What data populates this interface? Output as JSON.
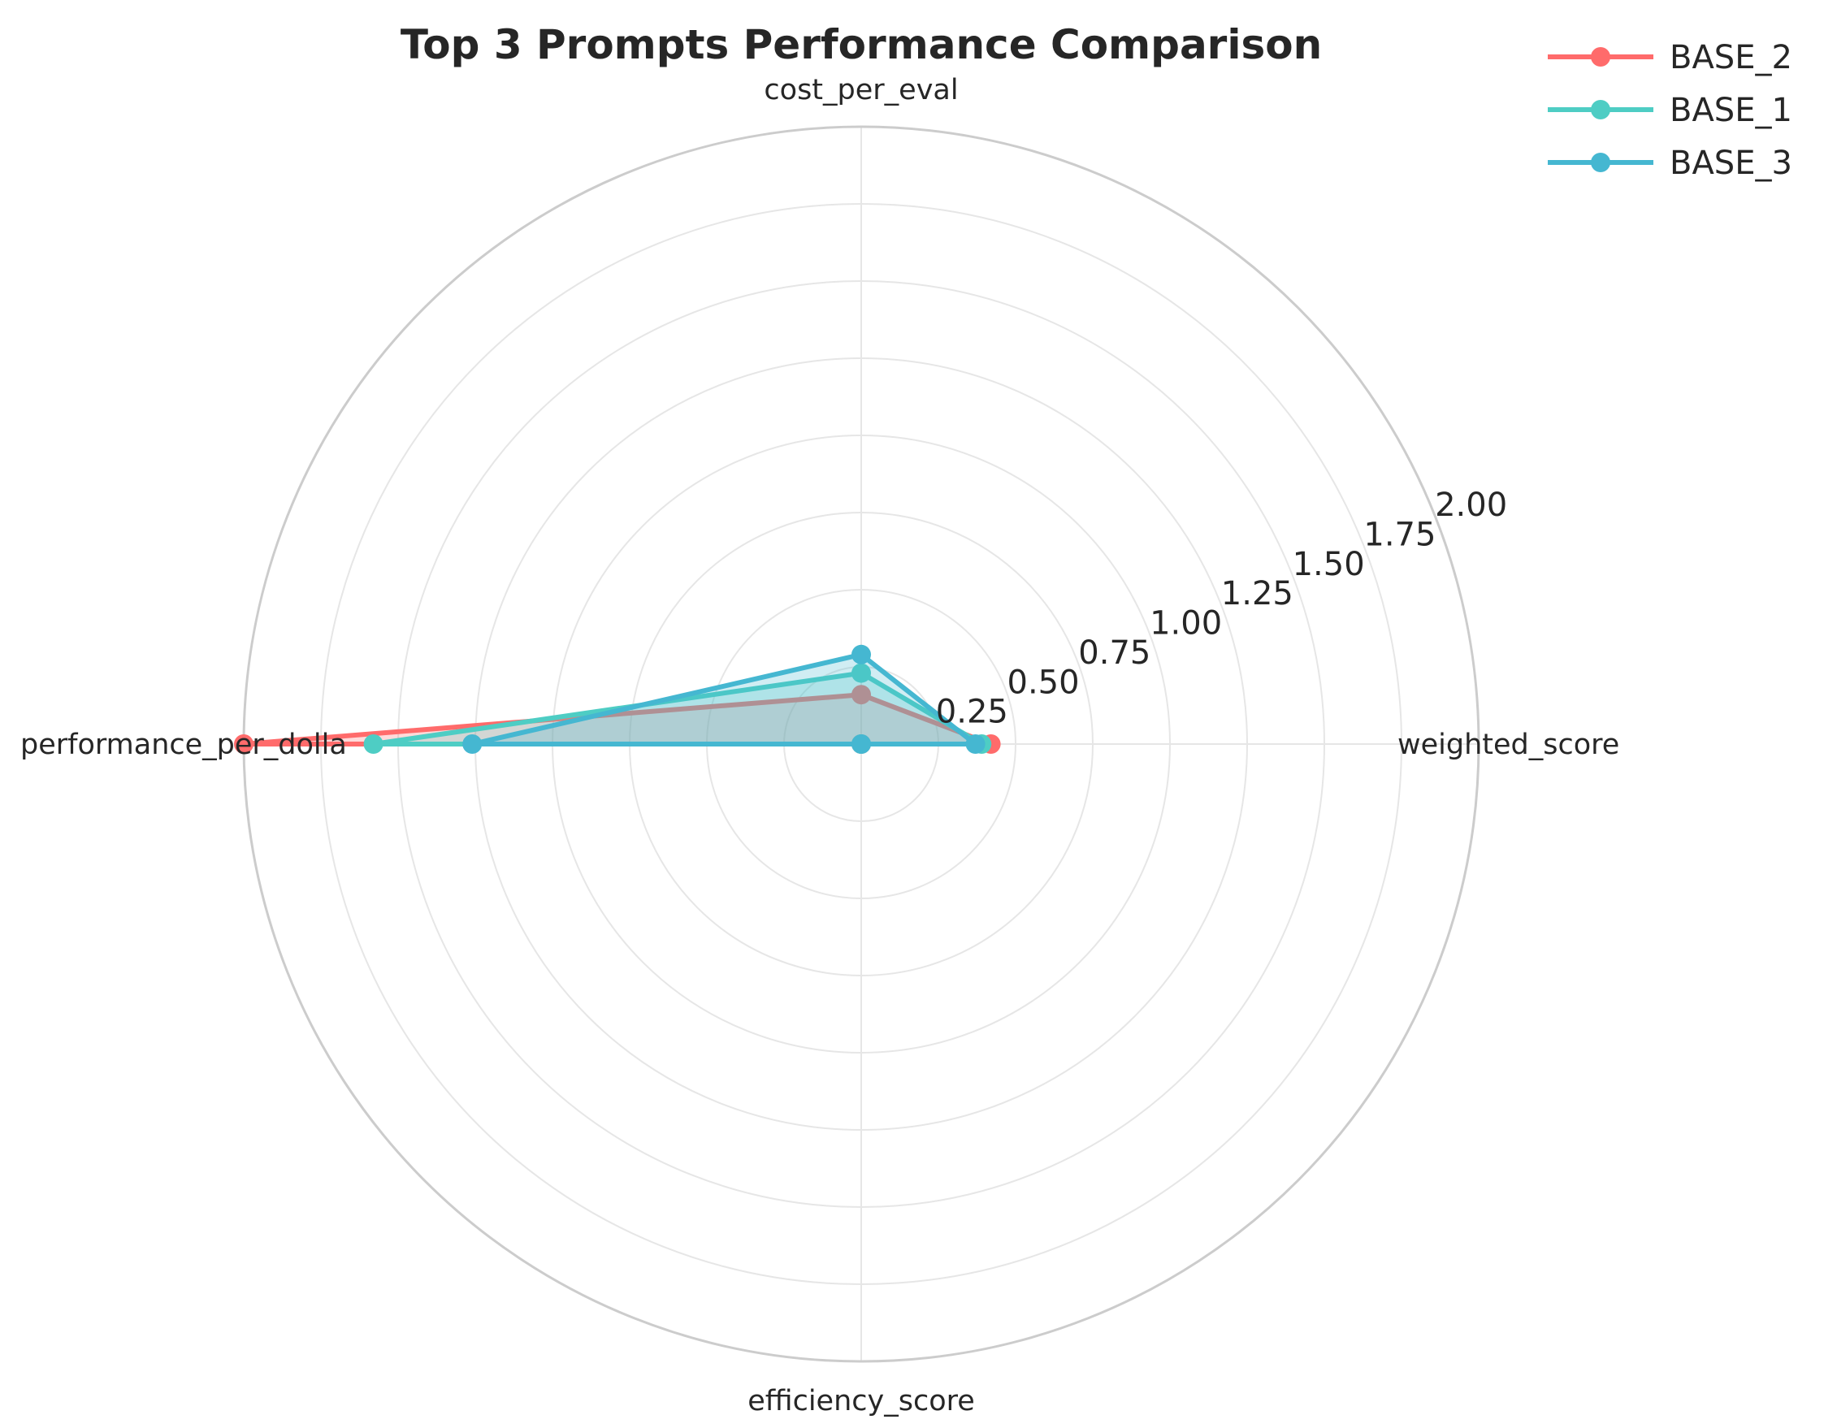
{
  "chart_data": {
    "type": "radar",
    "title": "Top 3 Prompts Performance Comparison",
    "axes": [
      "weighted_score",
      "cost_per_eval",
      "performance_per_dollar",
      "efficiency_score"
    ],
    "axis_labels_visible": [
      "weighted_score",
      "cost_per_eval",
      "performance_per_dolla",
      "efficiency_score"
    ],
    "rlim": [
      0,
      2.0
    ],
    "r_ticks": [
      0.25,
      0.5,
      0.75,
      1.0,
      1.25,
      1.5,
      1.75,
      2.0
    ],
    "r_tick_labels": [
      "0.25",
      "0.50",
      "0.75",
      "1.00",
      "1.25",
      "1.50",
      "1.75",
      "2.00"
    ],
    "grid": true,
    "legend_position": "top-right",
    "series": [
      {
        "name": "BASE_2",
        "color": "#FF6B6B",
        "values": [
          0.42,
          0.16,
          2.0,
          0.0
        ]
      },
      {
        "name": "BASE_1",
        "color": "#4ECDC4",
        "values": [
          0.39,
          0.23,
          1.58,
          0.0
        ]
      },
      {
        "name": "BASE_3",
        "color": "#45B7D1",
        "values": [
          0.37,
          0.29,
          1.26,
          0.0
        ]
      }
    ]
  }
}
